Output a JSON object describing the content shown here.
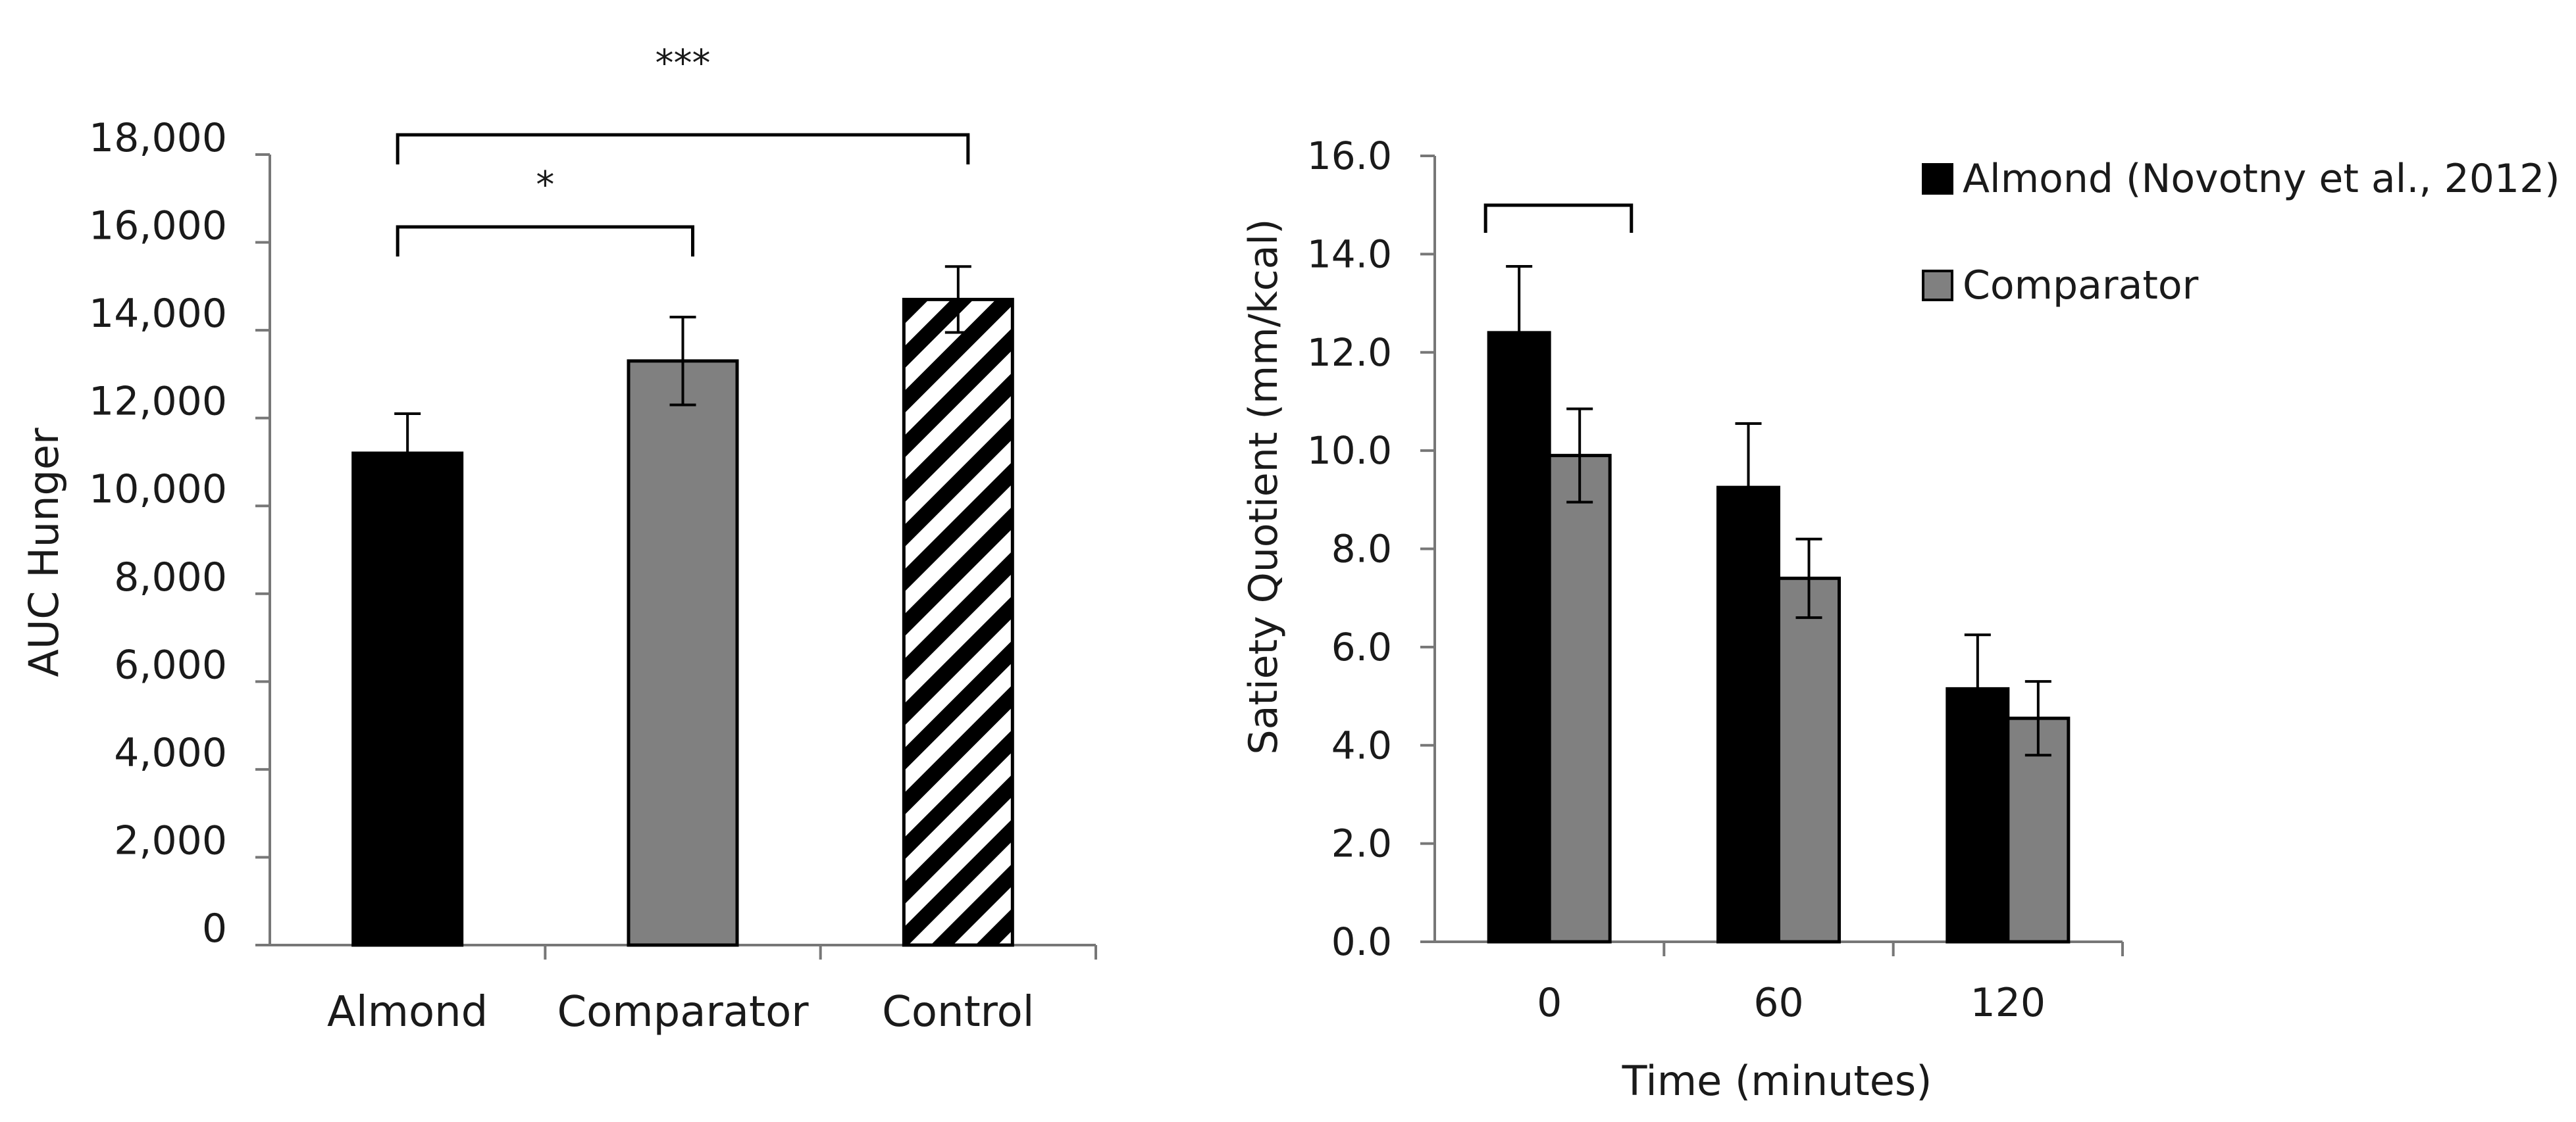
{
  "chart_data": [
    {
      "type": "bar",
      "title": "",
      "xlabel": "",
      "ylabel": "AUC Hunger",
      "ylim": [
        0,
        18000
      ],
      "yticks": [
        0,
        2000,
        4000,
        6000,
        8000,
        10000,
        12000,
        14000,
        16000,
        18000
      ],
      "ytick_labels": [
        "0",
        "2,000",
        "4,000",
        "6,000",
        "8,000",
        "10,000",
        "12,000",
        "14,000",
        "16,000",
        "18,000"
      ],
      "categories": [
        "Almond",
        "Comparator",
        "Control"
      ],
      "values": [
        11200,
        13300,
        14700
      ],
      "errors": [
        900,
        1000,
        750
      ],
      "fills": [
        "#000000",
        "#808080",
        "hatched"
      ],
      "significance": [
        {
          "from": "Almond",
          "to": "Comparator",
          "label": "*"
        },
        {
          "from": "Almond",
          "to": "Control",
          "label": "***"
        }
      ],
      "grid": false,
      "legend": "none"
    },
    {
      "type": "bar",
      "title": "",
      "xlabel": "Time (minutes)",
      "ylabel": "Satiety Quotient (mm/kcal)",
      "ylim": [
        0,
        16
      ],
      "yticks": [
        0,
        2,
        4,
        6,
        8,
        10,
        12,
        14,
        16
      ],
      "ytick_labels": [
        "0.0",
        "2.0",
        "4.0",
        "6.0",
        "8.0",
        "10.0",
        "12.0",
        "14.0",
        "16.0"
      ],
      "categories": [
        "0",
        "60",
        "120"
      ],
      "series": [
        {
          "name": "Almond (Novotny et al., 2012)",
          "color": "#000000",
          "values": [
            12.4,
            9.25,
            5.15
          ],
          "errors": [
            1.35,
            1.3,
            1.1
          ]
        },
        {
          "name": "Comparator",
          "color": "#808080",
          "values": [
            9.9,
            7.4,
            4.55
          ],
          "errors": [
            0.95,
            0.8,
            0.75
          ]
        }
      ],
      "significance": [
        {
          "category": "0",
          "label": ""
        }
      ],
      "grid": false,
      "legend": "top-right"
    }
  ]
}
